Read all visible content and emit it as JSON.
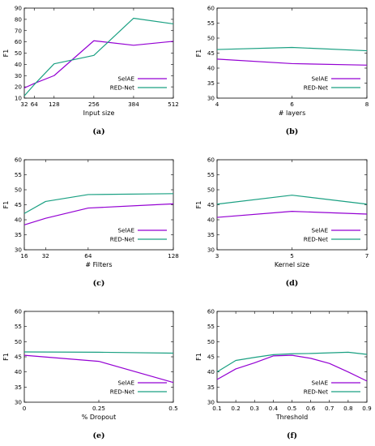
{
  "colors": {
    "SelAE": "#9400d3",
    "RED-Net": "#1aa082",
    "axis": "#000000"
  },
  "chart_data": [
    {
      "type": "line",
      "panel_label": "(a)",
      "xlabel": "Input size",
      "ylabel": "F1",
      "x": [
        32,
        64,
        128,
        256,
        384,
        512
      ],
      "xticks": [
        32,
        64,
        128,
        256,
        384,
        512
      ],
      "xlim": [
        32,
        512
      ],
      "ylim": [
        10,
        90
      ],
      "yticks": [
        10,
        20,
        30,
        40,
        50,
        60,
        70,
        80,
        90
      ],
      "legend_position": "bottom-right",
      "series": [
        {
          "name": "SelAE",
          "values": [
            19,
            23,
            30,
            61,
            57,
            60.5
          ]
        },
        {
          "name": "RED-Net",
          "values": [
            12,
            22,
            40.5,
            48,
            81,
            76
          ]
        }
      ]
    },
    {
      "type": "line",
      "panel_label": "(b)",
      "xlabel": "# layers",
      "ylabel": "F1",
      "x": [
        4,
        6,
        8
      ],
      "xticks": [
        4,
        6,
        8
      ],
      "xlim": [
        4,
        8
      ],
      "ylim": [
        30,
        60
      ],
      "yticks": [
        30,
        35,
        40,
        45,
        50,
        55,
        60
      ],
      "legend_position": "bottom-right",
      "series": [
        {
          "name": "SelAE",
          "values": [
            43,
            41.5,
            41
          ]
        },
        {
          "name": "RED-Net",
          "values": [
            46.2,
            46.9,
            45.8
          ]
        }
      ]
    },
    {
      "type": "line",
      "panel_label": "(c)",
      "xlabel": "# Filters",
      "ylabel": "F1",
      "x": [
        16,
        32,
        64,
        128
      ],
      "xticks": [
        16,
        32,
        64,
        128
      ],
      "xlim": [
        16,
        128
      ],
      "ylim": [
        30,
        60
      ],
      "yticks": [
        30,
        35,
        40,
        45,
        50,
        55,
        60
      ],
      "legend_position": "bottom-right",
      "series": [
        {
          "name": "SelAE",
          "values": [
            38.3,
            40.5,
            43.9,
            45.3
          ]
        },
        {
          "name": "RED-Net",
          "values": [
            42.1,
            46.1,
            48.4,
            48.7
          ]
        }
      ]
    },
    {
      "type": "line",
      "panel_label": "(d)",
      "xlabel": "Kernel size",
      "ylabel": "F1",
      "x": [
        3,
        5,
        7
      ],
      "xticks": [
        3,
        5,
        7
      ],
      "xlim": [
        3,
        7
      ],
      "ylim": [
        30,
        60
      ],
      "yticks": [
        30,
        35,
        40,
        45,
        50,
        55,
        60
      ],
      "legend_position": "bottom-right",
      "series": [
        {
          "name": "SelAE",
          "values": [
            40.8,
            42.8,
            41.9
          ]
        },
        {
          "name": "RED-Net",
          "values": [
            45.2,
            48.2,
            45.2
          ]
        }
      ]
    },
    {
      "type": "line",
      "panel_label": "(e)",
      "xlabel": "% Dropout",
      "ylabel": "F1",
      "x": [
        0,
        0.25,
        0.5
      ],
      "xticks": [
        0,
        0.25,
        0.5
      ],
      "xlim": [
        0,
        0.5
      ],
      "ylim": [
        30,
        60
      ],
      "yticks": [
        30,
        35,
        40,
        45,
        50,
        55,
        60
      ],
      "legend_position": "bottom-right",
      "series": [
        {
          "name": "SelAE",
          "values": [
            45.5,
            43.5,
            36.5
          ]
        },
        {
          "name": "RED-Net",
          "values": [
            46.6,
            46.5,
            46.2
          ]
        }
      ]
    },
    {
      "type": "line",
      "panel_label": "(f)",
      "xlabel": "Threshold",
      "ylabel": "F1",
      "x": [
        0.1,
        0.2,
        0.3,
        0.4,
        0.5,
        0.6,
        0.7,
        0.8,
        0.9
      ],
      "xticks": [
        0.1,
        0.2,
        0.3,
        0.4,
        0.5,
        0.6,
        0.7,
        0.8,
        0.9
      ],
      "xlim": [
        0.1,
        0.9
      ],
      "ylim": [
        30,
        60
      ],
      "yticks": [
        30,
        35,
        40,
        45,
        50,
        55,
        60
      ],
      "legend_position": "bottom-right",
      "series": [
        {
          "name": "SelAE",
          "values": [
            37.5,
            41.0,
            43.0,
            45.3,
            45.5,
            44.5,
            42.8,
            40.0,
            37.0
          ]
        },
        {
          "name": "RED-Net",
          "values": [
            40.0,
            43.8,
            44.8,
            45.7,
            46.0,
            46.1,
            46.3,
            46.5,
            45.8
          ]
        }
      ]
    }
  ]
}
